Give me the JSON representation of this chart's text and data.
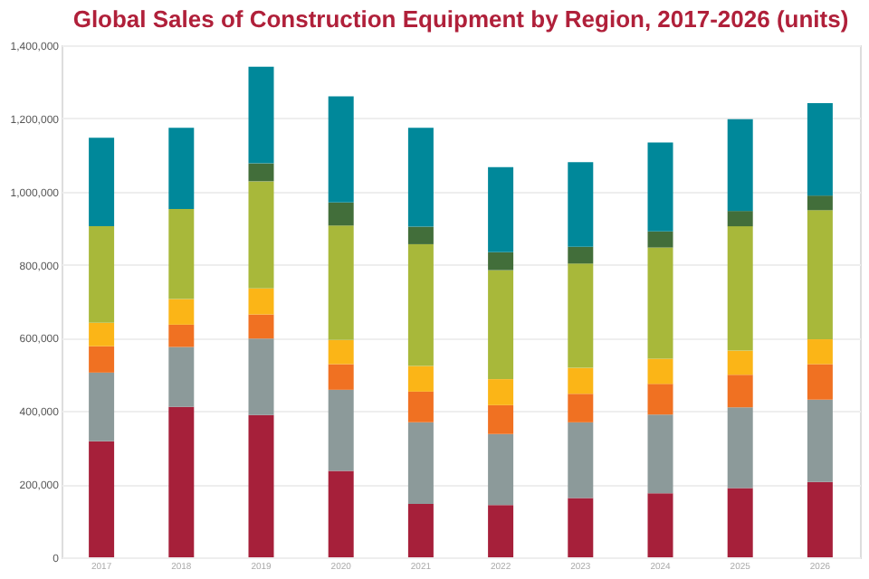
{
  "chart_data": {
    "type": "bar",
    "title": "Global Sales of Construction Equipment by Region, 2017-2026 (units)",
    "stacked": true,
    "categories": [
      "2017",
      "2018",
      "2019",
      "2020",
      "2021",
      "2022",
      "2023",
      "2024",
      "2025",
      "2026"
    ],
    "series": [
      {
        "color": "#a6203a",
        "values": [
          317000,
          411000,
          389000,
          236000,
          146000,
          143000,
          162000,
          175000,
          189000,
          206000
        ]
      },
      {
        "color": "#8c9a9a",
        "values": [
          188000,
          164000,
          209000,
          222000,
          223000,
          194000,
          207000,
          215000,
          221000,
          225000
        ]
      },
      {
        "color": "#f07122",
        "values": [
          72000,
          61000,
          66000,
          70000,
          84000,
          79000,
          78000,
          84000,
          89000,
          97000
        ]
      },
      {
        "color": "#fbb517",
        "values": [
          64000,
          70000,
          71000,
          66000,
          70000,
          71000,
          71000,
          69000,
          66000,
          68000
        ]
      },
      {
        "color": "#a8b83a",
        "values": [
          264000,
          246000,
          293000,
          313000,
          333000,
          298000,
          285000,
          304000,
          340000,
          353000
        ]
      },
      {
        "color": "#426e3a",
        "values": [
          0,
          0,
          49000,
          63000,
          48000,
          49000,
          46000,
          44000,
          42000,
          40000
        ]
      },
      {
        "color": "#00889a",
        "values": [
          242000,
          222000,
          264000,
          290000,
          270000,
          233000,
          231000,
          243000,
          251000,
          253000
        ]
      }
    ],
    "ylim": [
      0,
      1400000
    ],
    "yticks": [
      0,
      {
        "value": 200000,
        "label": "200,000"
      },
      {
        "value": 400000,
        "label": "400,000"
      },
      {
        "value": 600000,
        "label": "600,000"
      },
      {
        "value": 800000,
        "label": "800,000"
      },
      {
        "value": 1000000,
        "label": "1,000,000"
      },
      {
        "value": 1200000,
        "label": "1,200,000"
      },
      {
        "value": 1400000,
        "label": "1,400,000"
      }
    ],
    "grid": "y",
    "legend": false
  }
}
